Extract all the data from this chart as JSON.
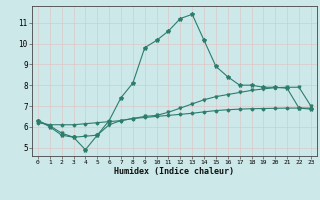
{
  "xlabel": "Humidex (Indice chaleur)",
  "bg_color": "#cde8e8",
  "grid_color": "#e8e8e8",
  "line_color": "#2d7d6e",
  "xlim": [
    -0.5,
    23.5
  ],
  "ylim": [
    4.6,
    11.8
  ],
  "yticks": [
    5,
    6,
    7,
    8,
    9,
    10,
    11
  ],
  "xticks": [
    0,
    1,
    2,
    3,
    4,
    5,
    6,
    7,
    8,
    9,
    10,
    11,
    12,
    13,
    14,
    15,
    16,
    17,
    18,
    19,
    20,
    21,
    22,
    23
  ],
  "line1_x": [
    0,
    1,
    2,
    3,
    4,
    5,
    6,
    7,
    8,
    9,
    10,
    11,
    12,
    13,
    14,
    15,
    16,
    17,
    18,
    19,
    20,
    21,
    22,
    23
  ],
  "line1_y": [
    6.3,
    6.0,
    5.6,
    5.5,
    4.9,
    5.6,
    6.3,
    7.4,
    8.1,
    9.8,
    10.15,
    10.6,
    11.2,
    11.4,
    10.15,
    8.9,
    8.4,
    8.0,
    8.0,
    7.9,
    7.9,
    7.85,
    6.9,
    6.85
  ],
  "line2_x": [
    0,
    1,
    2,
    3,
    4,
    5,
    6,
    7,
    8,
    9,
    10,
    11,
    12,
    13,
    14,
    15,
    16,
    17,
    18,
    19,
    20,
    21,
    22,
    23
  ],
  "line2_y": [
    6.3,
    6.05,
    5.7,
    5.5,
    5.55,
    5.6,
    6.1,
    6.3,
    6.4,
    6.5,
    6.55,
    6.7,
    6.9,
    7.1,
    7.3,
    7.45,
    7.55,
    7.65,
    7.75,
    7.82,
    7.88,
    7.9,
    7.9,
    7.0
  ],
  "line3_x": [
    0,
    1,
    2,
    3,
    4,
    5,
    6,
    7,
    8,
    9,
    10,
    11,
    12,
    13,
    14,
    15,
    16,
    17,
    18,
    19,
    20,
    21,
    22,
    23
  ],
  "line3_y": [
    6.2,
    6.1,
    6.1,
    6.1,
    6.15,
    6.2,
    6.25,
    6.3,
    6.4,
    6.45,
    6.5,
    6.55,
    6.6,
    6.65,
    6.72,
    6.78,
    6.82,
    6.85,
    6.87,
    6.88,
    6.89,
    6.9,
    6.9,
    6.9
  ]
}
